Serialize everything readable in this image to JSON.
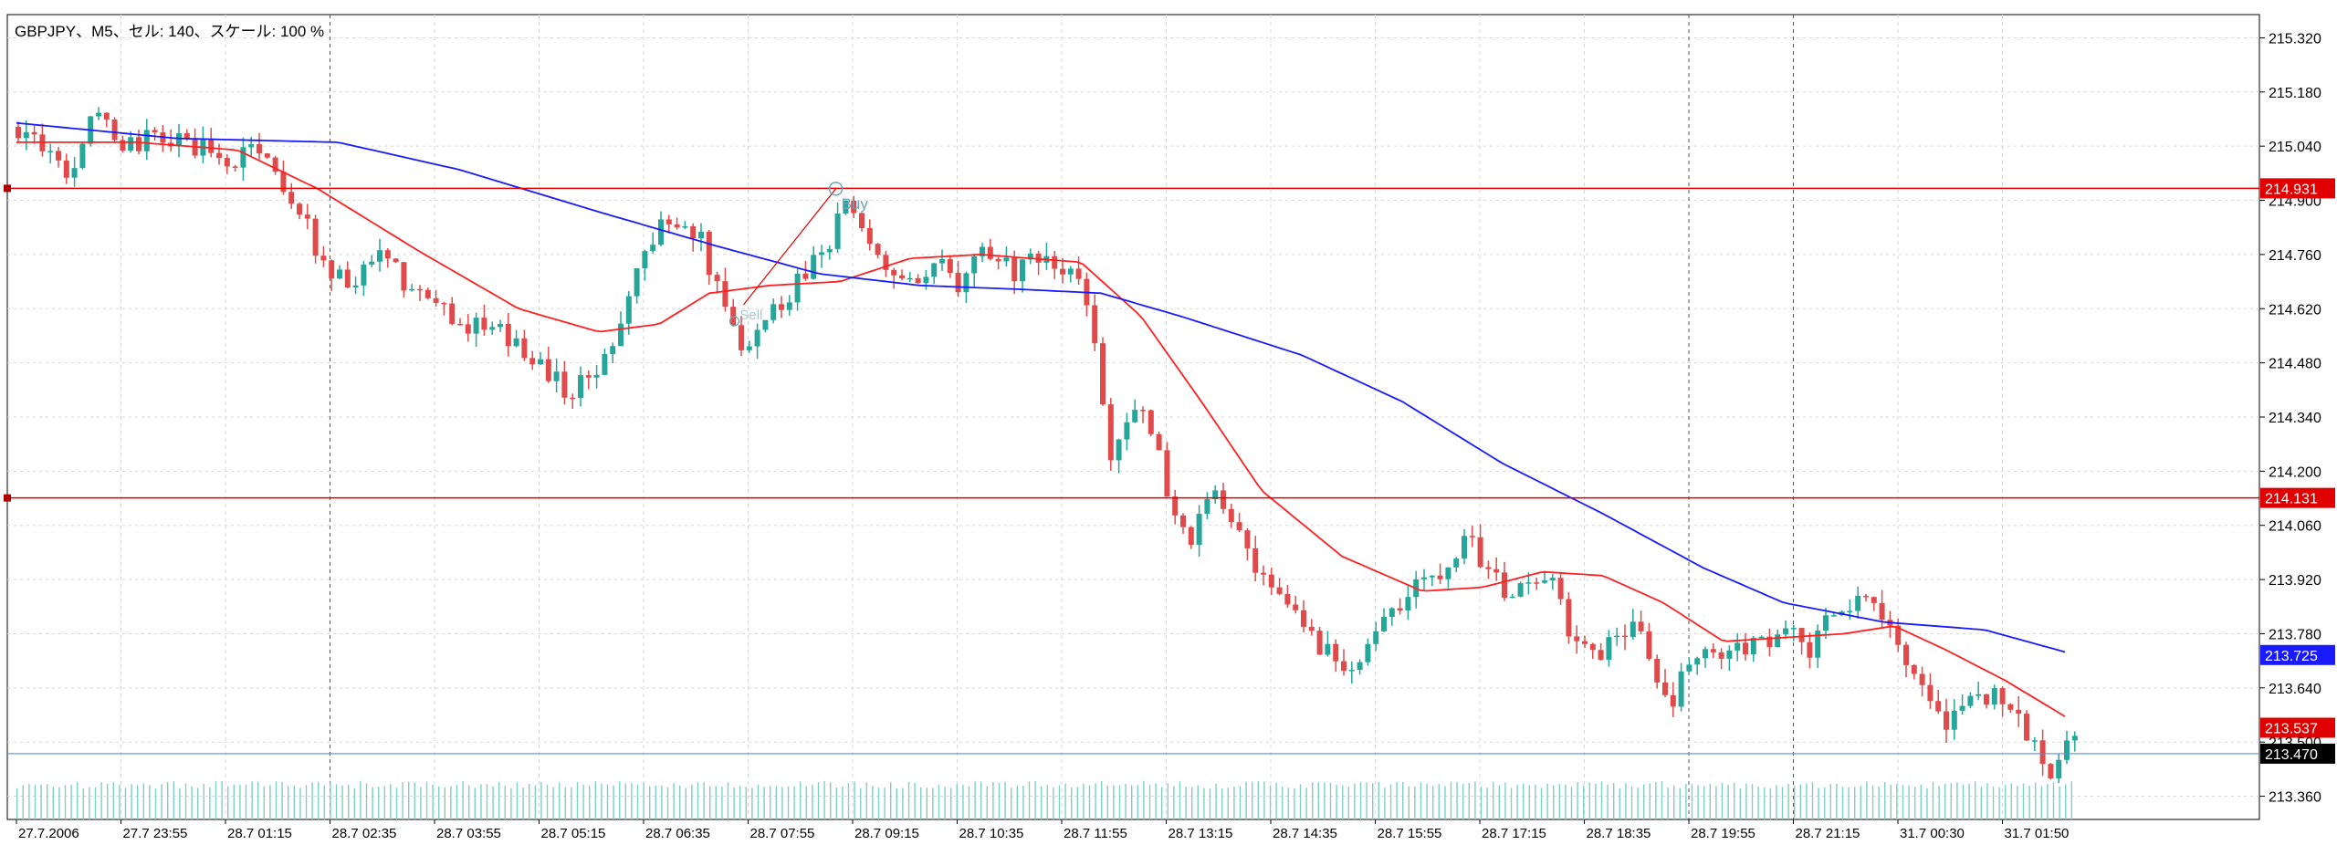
{
  "window": {
    "title": "GBPJPY、M5、セル: 140、スケール: 100 %"
  },
  "colors": {
    "background": "#ffffff",
    "grid": "#d8d8d8",
    "bull": "#26a69a",
    "bear": "#e04a4a",
    "ma_fast": "#ff2020",
    "ma_slow": "#1a1aff",
    "bid_line": "#5b8ed6",
    "hline": "#e00000",
    "volume": "#7fcfc2",
    "signal": "#6aa5b4",
    "tag_red": "#e00000",
    "tag_blue": "#1a1aff",
    "tag_black": "#000000"
  },
  "chart_data": {
    "type": "candlestick",
    "symbol": "GBPJPY",
    "timeframe": "M5",
    "ylim": [
      213.3,
      215.38
    ],
    "y_ticks": [
      "215.320",
      "215.180",
      "215.040",
      "214.900",
      "214.760",
      "214.620",
      "214.480",
      "214.340",
      "214.200",
      "214.060",
      "213.920",
      "213.780",
      "213.640",
      "213.500",
      "213.360"
    ],
    "x_tick_labels": [
      "27.7.2006",
      "27.7 23:55",
      "28.7 01:15",
      "28.7 02:35",
      "28.7 03:55",
      "28.7 05:15",
      "28.7 06:35",
      "28.7 07:55",
      "28.7 09:15",
      "28.7 10:35",
      "28.7 11:55",
      "28.7 13:15",
      "28.7 14:35",
      "28.7 15:55",
      "28.7 17:15",
      "28.7 18:35",
      "28.7 19:55",
      "28.7 21:15",
      "31.7 00:30",
      "31.7 01:50"
    ],
    "horizontal_lines": [
      {
        "price": 214.931,
        "label": "214.931",
        "color": "red"
      },
      {
        "price": 214.131,
        "label": "214.131",
        "color": "red"
      }
    ],
    "price_tags": [
      {
        "price": 213.725,
        "label": "213.725",
        "color": "blue"
      },
      {
        "price": 213.537,
        "label": "213.537",
        "color": "red"
      },
      {
        "price": 213.47,
        "label": "213.470",
        "color": "black"
      }
    ],
    "bid": 213.47,
    "signals": [
      {
        "label": "Buy",
        "price": 214.93
      },
      {
        "label": "Sell",
        "price": 214.63
      }
    ],
    "path": [
      [
        0,
        215.09
      ],
      [
        18,
        215.05
      ],
      [
        30,
        214.97
      ],
      [
        40,
        215.12
      ],
      [
        58,
        215.04
      ],
      [
        72,
        215.06
      ],
      [
        90,
        215.05
      ],
      [
        110,
        214.98
      ],
      [
        120,
        215.06
      ],
      [
        135,
        214.95
      ],
      [
        145,
        214.86
      ],
      [
        158,
        214.72
      ],
      [
        172,
        214.68
      ],
      [
        185,
        214.76
      ],
      [
        200,
        214.66
      ],
      [
        215,
        214.62
      ],
      [
        228,
        214.58
      ],
      [
        245,
        214.55
      ],
      [
        262,
        214.49
      ],
      [
        278,
        214.4
      ],
      [
        292,
        214.46
      ],
      [
        302,
        214.57
      ],
      [
        312,
        214.72
      ],
      [
        322,
        214.82
      ],
      [
        335,
        214.87
      ],
      [
        345,
        214.78
      ],
      [
        355,
        214.62
      ],
      [
        365,
        214.53
      ],
      [
        375,
        214.59
      ],
      [
        388,
        214.66
      ],
      [
        398,
        214.74
      ],
      [
        408,
        214.8
      ],
      [
        415,
        214.92
      ],
      [
        422,
        214.82
      ],
      [
        432,
        214.74
      ],
      [
        440,
        214.72
      ],
      [
        452,
        214.66
      ],
      [
        465,
        214.74
      ],
      [
        472,
        214.69
      ],
      [
        480,
        214.78
      ],
      [
        490,
        214.76
      ],
      [
        500,
        214.72
      ],
      [
        510,
        214.74
      ],
      [
        520,
        214.72
      ],
      [
        530,
        214.71
      ],
      [
        538,
        214.6
      ],
      [
        543,
        214.4
      ],
      [
        548,
        214.25
      ],
      [
        558,
        214.37
      ],
      [
        565,
        214.33
      ],
      [
        572,
        214.23
      ],
      [
        580,
        214.08
      ],
      [
        588,
        214.03
      ],
      [
        598,
        214.14
      ],
      [
        610,
        214.07
      ],
      [
        618,
        213.94
      ],
      [
        628,
        213.88
      ],
      [
        640,
        213.84
      ],
      [
        650,
        213.76
      ],
      [
        662,
        213.71
      ],
      [
        672,
        213.72
      ],
      [
        682,
        213.8
      ],
      [
        692,
        213.84
      ],
      [
        702,
        213.92
      ],
      [
        712,
        213.95
      ],
      [
        720,
        214.0
      ],
      [
        728,
        214.02
      ],
      [
        738,
        213.92
      ],
      [
        748,
        213.87
      ],
      [
        758,
        213.94
      ],
      [
        768,
        213.9
      ],
      [
        778,
        213.77
      ],
      [
        788,
        213.71
      ],
      [
        798,
        213.77
      ],
      [
        808,
        213.81
      ],
      [
        815,
        213.73
      ],
      [
        820,
        213.66
      ],
      [
        826,
        213.57
      ],
      [
        835,
        213.7
      ],
      [
        845,
        213.73
      ],
      [
        855,
        213.71
      ],
      [
        865,
        213.75
      ],
      [
        875,
        213.77
      ],
      [
        885,
        213.79
      ],
      [
        895,
        213.72
      ],
      [
        905,
        213.81
      ],
      [
        915,
        213.85
      ],
      [
        925,
        213.86
      ],
      [
        935,
        213.84
      ],
      [
        945,
        213.68
      ],
      [
        955,
        213.6
      ],
      [
        962,
        213.53
      ],
      [
        972,
        213.61
      ],
      [
        982,
        213.63
      ],
      [
        992,
        213.6
      ],
      [
        1000,
        213.57
      ],
      [
        1008,
        213.48
      ],
      [
        1015,
        213.41
      ],
      [
        1022,
        213.49
      ]
    ],
    "series": [
      {
        "name": "ma_fast",
        "values": [
          [
            0,
            215.05
          ],
          [
            60,
            215.05
          ],
          [
            110,
            215.03
          ],
          [
            150,
            214.93
          ],
          [
            200,
            214.77
          ],
          [
            250,
            214.62
          ],
          [
            290,
            214.56
          ],
          [
            320,
            214.58
          ],
          [
            345,
            214.66
          ],
          [
            375,
            214.68
          ],
          [
            410,
            214.69
          ],
          [
            445,
            214.75
          ],
          [
            480,
            214.76
          ],
          [
            530,
            214.74
          ],
          [
            560,
            214.6
          ],
          [
            590,
            214.38
          ],
          [
            620,
            214.15
          ],
          [
            660,
            213.98
          ],
          [
            700,
            213.89
          ],
          [
            730,
            213.9
          ],
          [
            760,
            213.94
          ],
          [
            790,
            213.93
          ],
          [
            820,
            213.86
          ],
          [
            850,
            213.76
          ],
          [
            880,
            213.77
          ],
          [
            910,
            213.78
          ],
          [
            935,
            213.8
          ],
          [
            960,
            213.74
          ],
          [
            990,
            213.66
          ],
          [
            1022,
            213.56
          ]
        ]
      },
      {
        "name": "ma_slow",
        "values": [
          [
            0,
            215.1
          ],
          [
            80,
            215.06
          ],
          [
            160,
            215.05
          ],
          [
            220,
            214.98
          ],
          [
            290,
            214.87
          ],
          [
            350,
            214.78
          ],
          [
            400,
            214.71
          ],
          [
            450,
            214.68
          ],
          [
            500,
            214.67
          ],
          [
            540,
            214.66
          ],
          [
            580,
            214.6
          ],
          [
            640,
            214.5
          ],
          [
            690,
            214.38
          ],
          [
            740,
            214.22
          ],
          [
            790,
            214.09
          ],
          [
            840,
            213.95
          ],
          [
            880,
            213.86
          ],
          [
            930,
            213.81
          ],
          [
            980,
            213.79
          ],
          [
            1022,
            213.73
          ]
        ]
      }
    ]
  }
}
